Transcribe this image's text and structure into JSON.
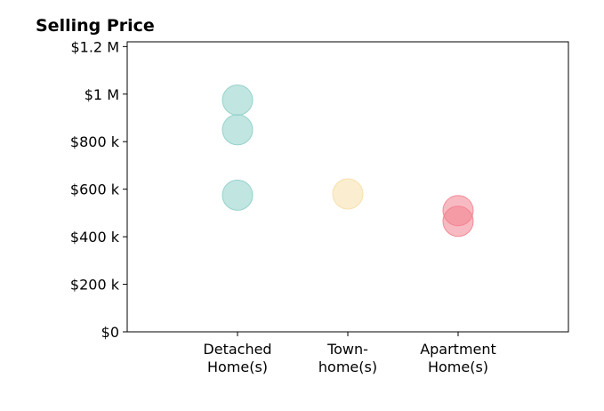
{
  "chart_data": {
    "type": "scatter",
    "title": "Selling Price",
    "xlabel": "",
    "ylabel": "",
    "categories": [
      [
        "Detached",
        "Home(s)"
      ],
      [
        "Town-",
        "home(s)"
      ],
      [
        "Apartment",
        "Home(s)"
      ]
    ],
    "ylim": [
      0,
      1220000
    ],
    "xlim": [
      -1,
      3
    ],
    "yticks": [
      {
        "value": 0,
        "label": "$0"
      },
      {
        "value": 200000,
        "label": "$200 k"
      },
      {
        "value": 400000,
        "label": "$400 k"
      },
      {
        "value": 600000,
        "label": "$600 k"
      },
      {
        "value": 800000,
        "label": "$800 k"
      },
      {
        "value": 1000000,
        "label": "$1 M"
      },
      {
        "value": 1200000,
        "label": "$1.2 M"
      }
    ],
    "grid": false,
    "legend": "none",
    "series": [
      {
        "category": "Detached Home(s)",
        "color": "#8ecfc9",
        "values": [
          975000,
          850000,
          575000
        ]
      },
      {
        "category": "Town-home(s)",
        "color": "#f7dfa8",
        "values": [
          580000
        ]
      },
      {
        "category": "Apartment Home(s)",
        "color": "#f2828f",
        "values": [
          510000,
          465000
        ]
      }
    ]
  }
}
